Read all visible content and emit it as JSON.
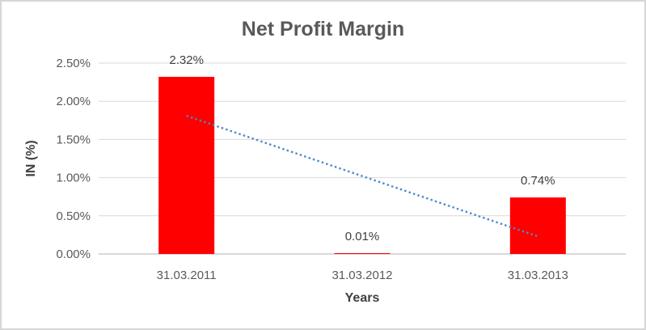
{
  "title": "Net Profit Margin",
  "colors": {
    "bar": "#FF0000",
    "trendline": "#4E87C9",
    "gridline": "#D9D9D9",
    "axis_line": "#C0C0C0",
    "tick_text": "#595959",
    "data_label_text": "#404040",
    "title_text": "#595959",
    "border": "#D6D6D6",
    "background": "#FFFFFF"
  },
  "chart_data": {
    "type": "bar",
    "title": "Net Profit Margin",
    "categories": [
      "31.03.2011",
      "31.03.2012",
      "31.03.2013"
    ],
    "values": [
      2.32,
      0.01,
      0.74
    ],
    "data_labels": [
      "2.32%",
      "0.01%",
      "0.74%"
    ],
    "xlabel": "Years",
    "ylabel": "IN (%)",
    "ylim": [
      0,
      2.5
    ],
    "ytick_step": 0.5,
    "ytick_labels": [
      "0.00%",
      "0.50%",
      "1.00%",
      "1.50%",
      "2.00%",
      "2.50%"
    ],
    "grid": true,
    "legend": false,
    "trendline": {
      "type": "linear",
      "style": "dotted",
      "start_value": 1.81,
      "end_value": 0.23
    }
  }
}
